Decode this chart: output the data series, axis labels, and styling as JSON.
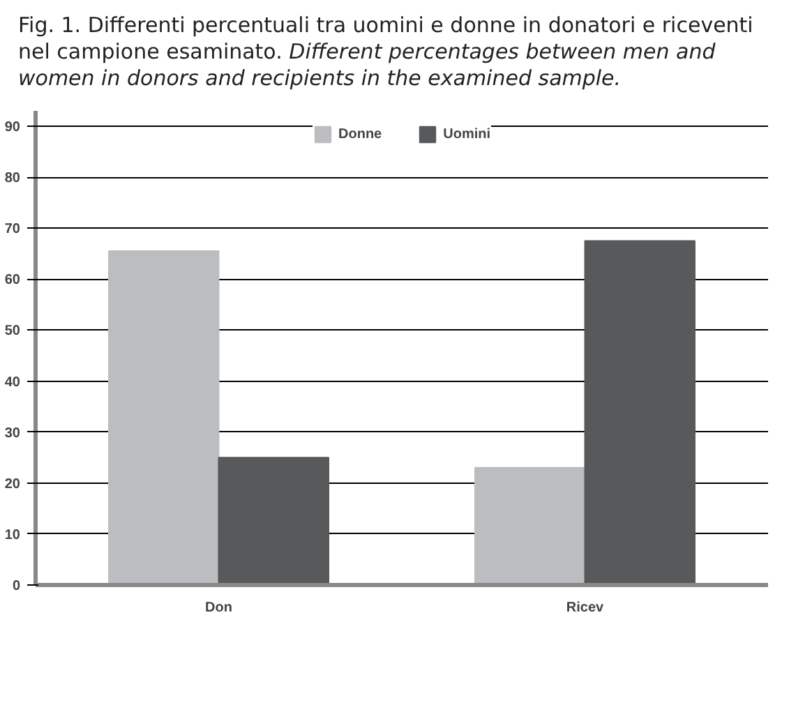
{
  "chart_data": {
    "type": "bar",
    "title": "Fig. 1. Differenti percentuali tra uomini e donne in donatori e riceventi nel campione esaminato.",
    "subtitle": "Different percentages between men and women in donors and recipients in the examined sample.",
    "categories": [
      "Don",
      "Ricev"
    ],
    "series": [
      {
        "name": "Donne",
        "color": "#bcbdc0",
        "values": [
          65.5,
          23
        ]
      },
      {
        "name": "Uomini",
        "color": "#58595b",
        "values": [
          25,
          67.5
        ]
      }
    ],
    "ylim": [
      0,
      93
    ],
    "yticks": [
      0,
      10,
      20,
      30,
      40,
      50,
      60,
      70,
      80,
      90
    ],
    "grid": "y",
    "legend": "top"
  }
}
